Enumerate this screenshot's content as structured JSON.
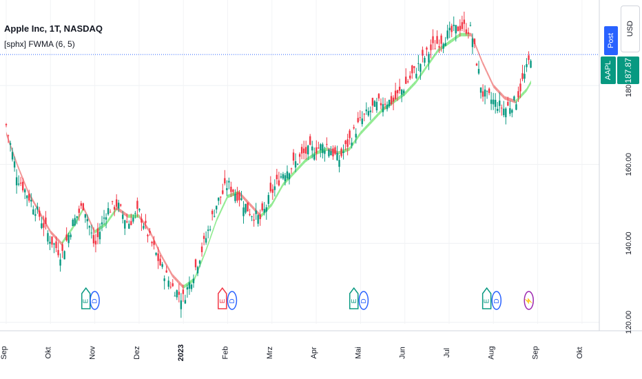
{
  "header": {
    "symbol_title": "Apple Inc, 1T, NASDAQ",
    "indicator_title": "[sphx] FWMA (6, 5)"
  },
  "price_scale": {
    "currency": "USD",
    "post_label": "Post",
    "ticker_tag": "AAPL",
    "last_price": "187.87"
  },
  "colors": {
    "up": "#089981",
    "down": "#f23645",
    "ma_up": "#7ee87e",
    "ma_down": "#f08080",
    "price_line": "#2962ff",
    "earnings_green": "#089981",
    "earnings_red": "#f23645",
    "dividend_blue": "#2962ff",
    "split_purple": "#9c27b0"
  },
  "chart_data": {
    "type": "candlestick",
    "y_axis": {
      "ticks": [
        120,
        140,
        160,
        180
      ],
      "tick_labels": [
        "120.00",
        "140.00",
        "160.00",
        "180.00"
      ],
      "ylim": [
        118,
        196
      ],
      "position": "right"
    },
    "x_axis": {
      "tick_labels": [
        "Sep",
        "Okt",
        "Nov",
        "Dez",
        "2023",
        "Feb",
        "Mrz",
        "Apr",
        "Mai",
        "Jun",
        "Jul",
        "Aug",
        "Sep",
        "Okt"
      ],
      "bold_labels": [
        "2023"
      ],
      "xlim": [
        0,
        12.9
      ]
    },
    "grid": true,
    "last_price": 187.87,
    "close_series": {
      "x": [
        0,
        0.25,
        0.5,
        0.75,
        1.0,
        1.25,
        1.5,
        1.75,
        2.0,
        2.25,
        2.5,
        2.75,
        3.0,
        3.25,
        3.5,
        3.75,
        4.0,
        4.25,
        4.5,
        4.75,
        5.0,
        5.25,
        5.5,
        5.75,
        6.0,
        6.25,
        6.5,
        6.75,
        7.0,
        7.25,
        7.5,
        7.75,
        8.0,
        8.25,
        8.5,
        8.75,
        9.0,
        9.25,
        9.5,
        9.75,
        10.0,
        10.25,
        10.5,
        10.75,
        11.0,
        11.25,
        11.5,
        11.75,
        11.85
      ],
      "y": [
        170,
        157,
        152,
        147,
        141,
        137,
        145,
        150,
        139,
        148,
        150,
        145,
        148,
        141,
        134,
        129,
        126,
        133,
        141,
        150,
        155,
        152,
        148,
        146,
        153,
        158,
        160,
        163,
        164,
        165,
        161,
        166,
        171,
        174,
        176,
        176,
        180,
        184,
        188,
        191,
        193,
        195,
        194,
        178,
        176,
        174,
        176,
        184,
        187.87
      ]
    },
    "fwma_series": {
      "x": [
        0,
        0.25,
        0.5,
        0.75,
        1.0,
        1.25,
        1.5,
        1.75,
        2.0,
        2.25,
        2.5,
        2.75,
        3.0,
        3.25,
        3.5,
        3.75,
        4.0,
        4.25,
        4.5,
        4.75,
        5.0,
        5.25,
        5.5,
        5.75,
        6.0,
        6.25,
        6.5,
        6.75,
        7.0,
        7.25,
        7.5,
        7.75,
        8.0,
        8.25,
        8.5,
        8.75,
        9.0,
        9.25,
        9.5,
        9.75,
        10.0,
        10.25,
        10.5,
        10.75,
        11.0,
        11.25,
        11.5,
        11.75,
        11.85
      ],
      "y": [
        168,
        160,
        153,
        148,
        143,
        140,
        144,
        149,
        143,
        145,
        149,
        147,
        147,
        143,
        137,
        132,
        129,
        131,
        138,
        146,
        152,
        153,
        150,
        147,
        150,
        155,
        158,
        161,
        163,
        164,
        163,
        164,
        168,
        171,
        174,
        176,
        178,
        181,
        185,
        189,
        191,
        193,
        193,
        186,
        180,
        177,
        176,
        179,
        181
      ]
    },
    "events": [
      {
        "x": 1.8,
        "type": "E",
        "tone": "green"
      },
      {
        "x": 2.0,
        "type": "D",
        "tone": "blue"
      },
      {
        "x": 4.88,
        "type": "E",
        "tone": "red"
      },
      {
        "x": 5.1,
        "type": "D",
        "tone": "blue"
      },
      {
        "x": 7.85,
        "type": "E",
        "tone": "green"
      },
      {
        "x": 8.07,
        "type": "D",
        "tone": "blue"
      },
      {
        "x": 10.85,
        "type": "E",
        "tone": "green"
      },
      {
        "x": 11.07,
        "type": "D",
        "tone": "blue"
      },
      {
        "x": 11.8,
        "type": "S",
        "tone": "purple"
      }
    ]
  }
}
